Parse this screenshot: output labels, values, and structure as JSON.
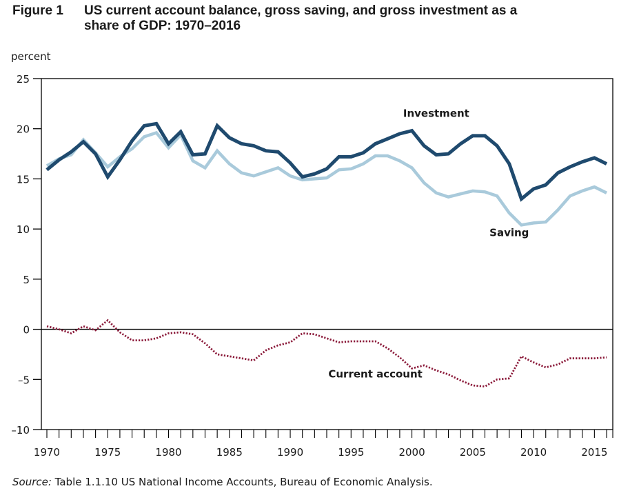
{
  "figure": {
    "label": "Figure 1",
    "title_line1": "US current account balance, gross saving, and gross investment as a",
    "title_line2": "share of GDP: 1970–2016",
    "unit": "percent",
    "source_label": "Source:",
    "source_text": " Table 1.1.10 US National Income Accounts, Bureau of Economic Analysis."
  },
  "colors": {
    "investment": "#1f4a6e",
    "saving": "#a9cadb",
    "current_account": "#8b1a3a",
    "axis": "#000000"
  },
  "chart_data": {
    "type": "line",
    "title": "US current account balance, gross saving, and gross investment as a share of GDP: 1970–2016",
    "xlabel": "",
    "ylabel": "percent",
    "xlim": [
      1970,
      2016
    ],
    "ylim": [
      -10,
      25
    ],
    "yticks": [
      25,
      20,
      15,
      10,
      5,
      0,
      -5,
      -10
    ],
    "ytick_labels": [
      "25",
      "20",
      "15",
      "10",
      "5",
      "0",
      "–5",
      "–10"
    ],
    "xticks": [
      1970,
      1975,
      1980,
      1985,
      1990,
      1995,
      2000,
      2005,
      2010,
      2015
    ],
    "xtick_labels": [
      "1970",
      "1975",
      "1980",
      "1985",
      "1990",
      "1995",
      "2000",
      "2005",
      "2010",
      "2015"
    ],
    "grid": false,
    "legend": "inline labels",
    "x": [
      1970,
      1971,
      1972,
      1973,
      1974,
      1975,
      1976,
      1977,
      1978,
      1979,
      1980,
      1981,
      1982,
      1983,
      1984,
      1985,
      1986,
      1987,
      1988,
      1989,
      1990,
      1991,
      1992,
      1993,
      1994,
      1995,
      1996,
      1997,
      1998,
      1999,
      2000,
      2001,
      2002,
      2003,
      2004,
      2005,
      2006,
      2007,
      2008,
      2009,
      2010,
      2011,
      2012,
      2013,
      2014,
      2015,
      2016
    ],
    "series": [
      {
        "name": "Investment",
        "style": "solid-thick",
        "values": [
          15.9,
          16.9,
          17.7,
          18.7,
          17.5,
          15.2,
          16.9,
          18.8,
          20.3,
          20.5,
          18.5,
          19.7,
          17.4,
          17.5,
          20.3,
          19.1,
          18.5,
          18.3,
          17.8,
          17.7,
          16.6,
          15.2,
          15.5,
          16.0,
          17.2,
          17.2,
          17.6,
          18.5,
          19.0,
          19.5,
          19.8,
          18.3,
          17.4,
          17.5,
          18.5,
          19.3,
          19.3,
          18.3,
          16.5,
          13.0,
          14.0,
          14.4,
          15.6,
          16.2,
          16.7,
          17.1,
          16.5
        ]
      },
      {
        "name": "Saving",
        "style": "solid-light",
        "values": [
          16.3,
          17.0,
          17.4,
          18.9,
          17.6,
          16.2,
          17.2,
          18.0,
          19.2,
          19.6,
          18.1,
          19.4,
          16.8,
          16.1,
          17.8,
          16.5,
          15.6,
          15.3,
          15.7,
          16.1,
          15.3,
          14.9,
          15.0,
          15.1,
          15.9,
          16.0,
          16.5,
          17.3,
          17.3,
          16.8,
          16.1,
          14.6,
          13.6,
          13.2,
          13.5,
          13.8,
          13.7,
          13.3,
          11.6,
          10.4,
          10.6,
          10.7,
          11.9,
          13.3,
          13.8,
          14.2,
          13.6
        ]
      },
      {
        "name": "Current account",
        "style": "dotted",
        "values": [
          0.3,
          0.0,
          -0.4,
          0.3,
          -0.1,
          0.9,
          -0.3,
          -1.1,
          -1.1,
          -0.9,
          -0.4,
          -0.3,
          -0.5,
          -1.4,
          -2.5,
          -2.7,
          -2.9,
          -3.1,
          -2.1,
          -1.6,
          -1.3,
          -0.4,
          -0.5,
          -0.9,
          -1.3,
          -1.2,
          -1.2,
          -1.2,
          -1.9,
          -2.8,
          -3.9,
          -3.6,
          -4.1,
          -4.5,
          -5.1,
          -5.6,
          -5.7,
          -5.0,
          -4.9,
          -2.7,
          -3.3,
          -3.8,
          -3.5,
          -2.9,
          -2.9,
          -2.9,
          -2.8
        ]
      }
    ],
    "annotations": [
      {
        "text": "Investment",
        "series": "Investment",
        "near_year": 2002,
        "near_value": 21.2
      },
      {
        "text": "Saving",
        "series": "Saving",
        "near_year": 2008,
        "near_value": 9.3
      },
      {
        "text": "Current account",
        "series": "Current account",
        "near_year": 1997,
        "near_value": -4.8
      }
    ]
  }
}
